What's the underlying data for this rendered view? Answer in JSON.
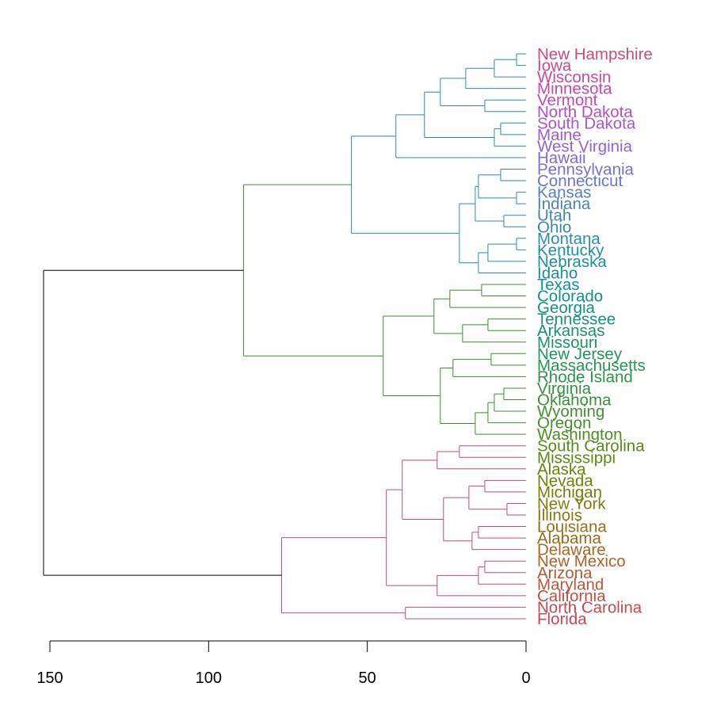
{
  "chart_data": {
    "type": "dendrogram",
    "orientation": "horizontal",
    "root_color": "#000000",
    "leaves": [
      {
        "label": "New Hampshire",
        "color": "#CC4B7A"
      },
      {
        "label": "Iowa",
        "color": "#CC4B88"
      },
      {
        "label": "Wisconsin",
        "color": "#C84A99"
      },
      {
        "label": "Minnesota",
        "color": "#C34BA7"
      },
      {
        "label": "Vermont",
        "color": "#BC4CB5"
      },
      {
        "label": "North Dakota",
        "color": "#B34FC2"
      },
      {
        "label": "South Dakota",
        "color": "#A955CB"
      },
      {
        "label": "Maine",
        "color": "#9C5BD2"
      },
      {
        "label": "West Virginia",
        "color": "#9062D6"
      },
      {
        "label": "Hawaii",
        "color": "#8169D6"
      },
      {
        "label": "Pennsylvania",
        "color": "#7470D4"
      },
      {
        "label": "Connecticut",
        "color": "#6577CE"
      },
      {
        "label": "Kansas",
        "color": "#577DC6"
      },
      {
        "label": "Indiana",
        "color": "#4A82BC"
      },
      {
        "label": "Utah",
        "color": "#3F86B2"
      },
      {
        "label": "Ohio",
        "color": "#3389B0"
      },
      {
        "label": "Montana",
        "color": "#2A8CAD"
      },
      {
        "label": "Kentucky",
        "color": "#218EA7"
      },
      {
        "label": "Nebraska",
        "color": "#1A8F9F"
      },
      {
        "label": "Idaho",
        "color": "#15909A"
      },
      {
        "label": "Texas",
        "color": "#139192"
      },
      {
        "label": "Colorado",
        "color": "#12928A"
      },
      {
        "label": "Georgia",
        "color": "#139382"
      },
      {
        "label": "Tennessee",
        "color": "#159479"
      },
      {
        "label": "Arkansas",
        "color": "#189470"
      },
      {
        "label": "Missouri",
        "color": "#1C9467"
      },
      {
        "label": "New Jersey",
        "color": "#21945D"
      },
      {
        "label": "Massachusetts",
        "color": "#279453"
      },
      {
        "label": "Rhode Island",
        "color": "#2D9449"
      },
      {
        "label": "Virginia",
        "color": "#339340"
      },
      {
        "label": "Oklahoma",
        "color": "#3A9237"
      },
      {
        "label": "Wyoming",
        "color": "#40912F"
      },
      {
        "label": "Oregon",
        "color": "#478F27"
      },
      {
        "label": "Washington",
        "color": "#4E8E20"
      },
      {
        "label": "South Carolina",
        "color": "#568B19"
      },
      {
        "label": "Mississippi",
        "color": "#5E8814"
      },
      {
        "label": "Alaska",
        "color": "#66850F"
      },
      {
        "label": "Nevada",
        "color": "#6E820C"
      },
      {
        "label": "Michigan",
        "color": "#787E0B"
      },
      {
        "label": "New York",
        "color": "#817A0C"
      },
      {
        "label": "Illinois",
        "color": "#8A760F"
      },
      {
        "label": "Louisiana",
        "color": "#937114"
      },
      {
        "label": "Alabama",
        "color": "#9C6C1A"
      },
      {
        "label": "Delaware",
        "color": "#A56721"
      },
      {
        "label": "New Mexico",
        "color": "#AD6229"
      },
      {
        "label": "Arizona",
        "color": "#B45C31"
      },
      {
        "label": "Maryland",
        "color": "#BB563A"
      },
      {
        "label": "California",
        "color": "#C05043"
      },
      {
        "label": "North Carolina",
        "color": "#C54A4D"
      },
      {
        "label": "Florida",
        "color": "#C84756"
      }
    ],
    "merges": [
      {
        "children": [
          0,
          1
        ],
        "height": 3,
        "color": "#2E86C1"
      },
      {
        "children": [
          "m0",
          2
        ],
        "height": 10,
        "color": "#2E86C1"
      },
      {
        "children": [
          "m1",
          3
        ],
        "height": 19,
        "color": "#2E86C1"
      },
      {
        "children": [
          4,
          5
        ],
        "height": 13,
        "color": "#2E86C1"
      },
      {
        "children": [
          "m2",
          "m3"
        ],
        "height": 27,
        "color": "#2E86C1"
      },
      {
        "children": [
          6,
          7
        ],
        "height": 8,
        "color": "#2E86C1"
      },
      {
        "children": [
          "m5",
          8
        ],
        "height": 10,
        "color": "#2E86C1"
      },
      {
        "children": [
          "m4",
          "m6"
        ],
        "height": 32,
        "color": "#2E86C1"
      },
      {
        "children": [
          "m7",
          9
        ],
        "height": 41,
        "color": "#2E86C1"
      },
      {
        "children": [
          10,
          11
        ],
        "height": 8,
        "color": "#2E86C1"
      },
      {
        "children": [
          12,
          13
        ],
        "height": 3,
        "color": "#2E86C1"
      },
      {
        "children": [
          "m9",
          "m10"
        ],
        "height": 15,
        "color": "#2E86C1"
      },
      {
        "children": [
          14,
          15
        ],
        "height": 7,
        "color": "#2E86C1"
      },
      {
        "children": [
          "m11",
          "m12"
        ],
        "height": 16,
        "color": "#2E86C1"
      },
      {
        "children": [
          16,
          17
        ],
        "height": 3,
        "color": "#2E86C1"
      },
      {
        "children": [
          "m14",
          18
        ],
        "height": 12,
        "color": "#2E86C1"
      },
      {
        "children": [
          "m15",
          19
        ],
        "height": 15,
        "color": "#2E86C1"
      },
      {
        "children": [
          "m13",
          "m16"
        ],
        "height": 21,
        "color": "#2E86C1"
      },
      {
        "children": [
          "m8",
          "m17"
        ],
        "height": 55,
        "color": "#2E86C1"
      },
      {
        "children": [
          20,
          21
        ],
        "height": 14,
        "color": "#3D8C2F"
      },
      {
        "children": [
          "m19",
          22
        ],
        "height": 24,
        "color": "#3D8C2F"
      },
      {
        "children": [
          23,
          24
        ],
        "height": 12,
        "color": "#3D8C2F"
      },
      {
        "children": [
          "m21",
          25
        ],
        "height": 20,
        "color": "#3D8C2F"
      },
      {
        "children": [
          "m20",
          "m22"
        ],
        "height": 29,
        "color": "#3D8C2F"
      },
      {
        "children": [
          26,
          27
        ],
        "height": 11,
        "color": "#3D8C2F"
      },
      {
        "children": [
          "m24",
          28
        ],
        "height": 23,
        "color": "#3D8C2F"
      },
      {
        "children": [
          29,
          30
        ],
        "height": 7,
        "color": "#3D8C2F"
      },
      {
        "children": [
          "m26",
          31
        ],
        "height": 10,
        "color": "#3D8C2F"
      },
      {
        "children": [
          "m27",
          32
        ],
        "height": 12,
        "color": "#3D8C2F"
      },
      {
        "children": [
          "m28",
          33
        ],
        "height": 16,
        "color": "#3D8C2F"
      },
      {
        "children": [
          "m25",
          "m29"
        ],
        "height": 27,
        "color": "#3D8C2F"
      },
      {
        "children": [
          "m23",
          "m30"
        ],
        "height": 45,
        "color": "#3D8C2F"
      },
      {
        "children": [
          "m18",
          "m31"
        ],
        "height": 89,
        "color": "#3D8C2F"
      },
      {
        "children": [
          34,
          35
        ],
        "height": 21,
        "color": "#C44A78"
      },
      {
        "children": [
          "m33",
          36
        ],
        "height": 28,
        "color": "#C44A78"
      },
      {
        "children": [
          37,
          38
        ],
        "height": 13,
        "color": "#C44A78"
      },
      {
        "children": [
          39,
          40
        ],
        "height": 6,
        "color": "#C44A78"
      },
      {
        "children": [
          "m35",
          "m36"
        ],
        "height": 18,
        "color": "#C44A78"
      },
      {
        "children": [
          41,
          42
        ],
        "height": 15,
        "color": "#C44A78"
      },
      {
        "children": [
          "m38",
          43
        ],
        "height": 17,
        "color": "#C44A78"
      },
      {
        "children": [
          "m37",
          "m39"
        ],
        "height": 26,
        "color": "#C44A78"
      },
      {
        "children": [
          "m34",
          "m40"
        ],
        "height": 39,
        "color": "#C44A78"
      },
      {
        "children": [
          44,
          45
        ],
        "height": 13,
        "color": "#C44A78"
      },
      {
        "children": [
          "m42",
          46
        ],
        "height": 15,
        "color": "#C44A78"
      },
      {
        "children": [
          "m43",
          47
        ],
        "height": 28,
        "color": "#C44A78"
      },
      {
        "children": [
          "m41",
          "m44"
        ],
        "height": 44,
        "color": "#C44A78"
      },
      {
        "children": [
          48,
          49
        ],
        "height": 38,
        "color": "#C44A78"
      },
      {
        "children": [
          "m45",
          "m46"
        ],
        "height": 77,
        "color": "#C44A78"
      },
      {
        "children": [
          "m32",
          "m47"
        ],
        "height": 152,
        "color": "#000000"
      }
    ],
    "x_axis": {
      "ticks": [
        150,
        100,
        50,
        0
      ],
      "tick_labels": [
        "150",
        "100",
        "50",
        "0"
      ],
      "reversed": true,
      "range": [
        0,
        152
      ]
    }
  }
}
